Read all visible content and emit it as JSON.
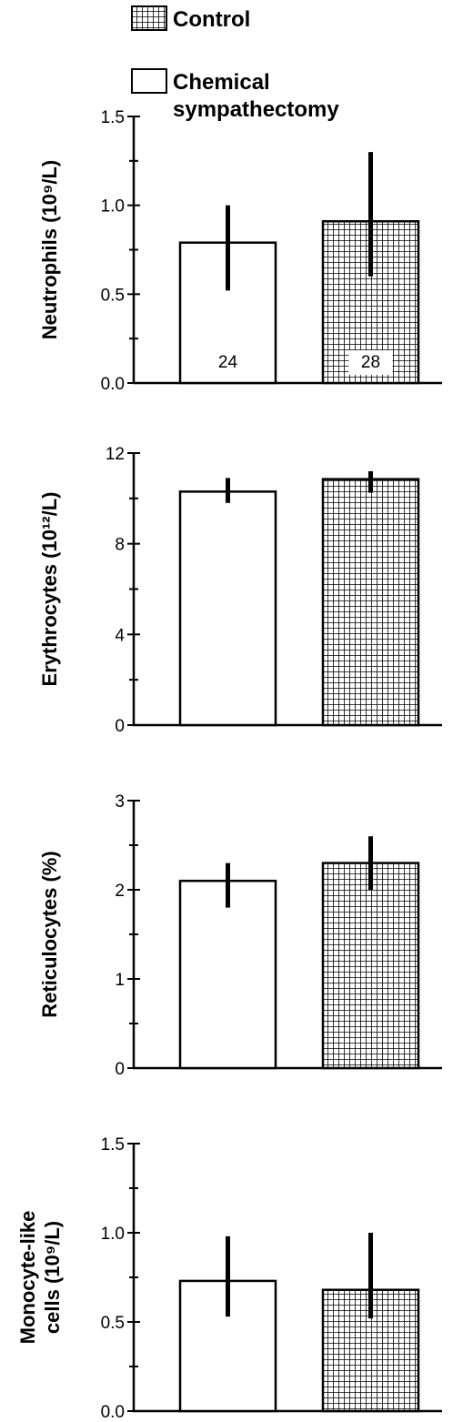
{
  "legend": {
    "items": [
      {
        "label": "Control",
        "pattern": "grid"
      },
      {
        "label": "Chemical\nsympathectomy",
        "pattern": "open"
      }
    ]
  },
  "colors": {
    "ink": "#000000",
    "background": "#ffffff"
  },
  "chart_data": [
    {
      "type": "bar",
      "categories": [
        "Chemical sympathectomy",
        "Control"
      ],
      "ylabel": "Neutrophils (10⁹/L)",
      "ylim": [
        0,
        1.5
      ],
      "yticks": [
        "0.0",
        "0.5",
        "1.0",
        "1.5"
      ],
      "values": [
        0.79,
        0.91
      ],
      "error_low": [
        0.52,
        0.6
      ],
      "error_high": [
        1.0,
        1.3
      ],
      "n_labels": [
        "24",
        "28"
      ]
    },
    {
      "type": "bar",
      "categories": [
        "Chemical sympathectomy",
        "Control"
      ],
      "ylabel": "Erythrocytes (10¹²/L)",
      "ylim": [
        0,
        12
      ],
      "yticks": [
        "0",
        "4",
        "8",
        "12"
      ],
      "values": [
        10.3,
        10.85
      ],
      "error_low": [
        9.8,
        10.25
      ],
      "error_high": [
        10.9,
        11.2
      ]
    },
    {
      "type": "bar",
      "categories": [
        "Chemical sympathectomy",
        "Control"
      ],
      "ylabel": "Reticulocytes (%)",
      "ylim": [
        0,
        3
      ],
      "yticks": [
        "0",
        "1",
        "2",
        "3"
      ],
      "values": [
        2.1,
        2.3
      ],
      "error_low": [
        1.8,
        2.0
      ],
      "error_high": [
        2.3,
        2.6
      ]
    },
    {
      "type": "bar",
      "categories": [
        "Chemical sympathectomy",
        "Control"
      ],
      "ylabel": "Monocyte-like\ncells (10⁹/L)",
      "ylim": [
        0,
        1.5
      ],
      "yticks": [
        "0.0",
        "0.5",
        "1.0",
        "1.5"
      ],
      "values": [
        0.73,
        0.68
      ],
      "error_low": [
        0.53,
        0.52
      ],
      "error_high": [
        0.98,
        1.0
      ]
    }
  ]
}
